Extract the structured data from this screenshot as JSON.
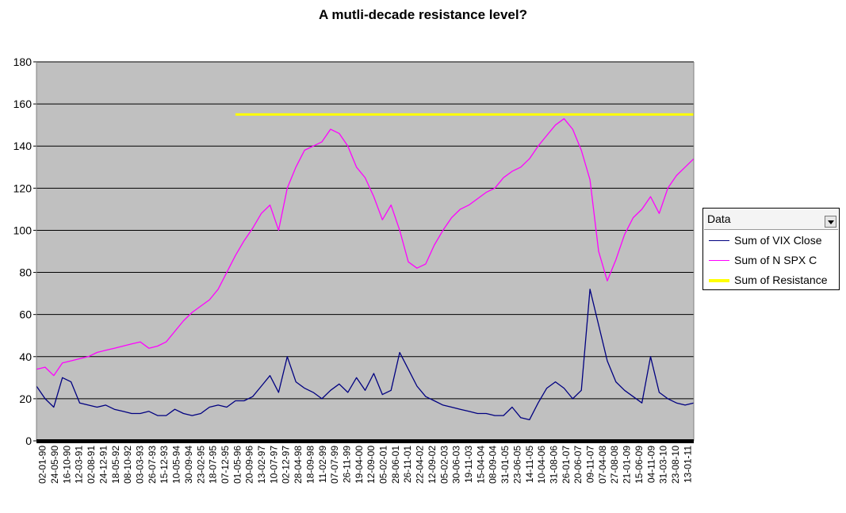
{
  "chart_data": {
    "type": "line",
    "title": "A mutli-decade resistance level?",
    "ylim": [
      0,
      180
    ],
    "yticks": [
      0,
      20,
      40,
      60,
      80,
      100,
      120,
      140,
      160,
      180
    ],
    "grid": true,
    "legend_position": "right",
    "legend_title": "Data",
    "x_tick_labels": [
      "02-01-90",
      "24-05-90",
      "16-10-90",
      "12-03-91",
      "02-08-91",
      "24-12-91",
      "18-05-92",
      "08-10-92",
      "03-03-93",
      "26-07-93",
      "15-12-93",
      "10-05-94",
      "30-09-94",
      "23-02-95",
      "18-07-95",
      "07-12-95",
      "01-05-96",
      "20-09-96",
      "13-02-97",
      "10-07-97",
      "02-12-97",
      "28-04-98",
      "18-09-98",
      "11-02-99",
      "07-07-99",
      "26-11-99",
      "19-04-00",
      "12-09-00",
      "05-02-01",
      "28-06-01",
      "26-11-01",
      "22-04-02",
      "12-09-02",
      "05-02-03",
      "30-06-03",
      "19-11-03",
      "15-04-04",
      "08-09-04",
      "31-01-05",
      "23-06-05",
      "14-11-05",
      "10-04-06",
      "31-08-06",
      "26-01-07",
      "20-06-07",
      "09-11-07",
      "07-04-08",
      "27-08-08",
      "21-01-09",
      "15-06-09",
      "04-11-09",
      "31-03-10",
      "23-08-10",
      "13-01-11"
    ],
    "series": [
      {
        "name": "Sum of VIX Close",
        "color": "#000080",
        "values": [
          [
            0,
            26
          ],
          [
            1,
            20
          ],
          [
            2,
            16
          ],
          [
            3,
            30
          ],
          [
            4,
            28
          ],
          [
            5,
            18
          ],
          [
            6,
            17
          ],
          [
            7,
            16
          ],
          [
            8,
            17
          ],
          [
            9,
            15
          ],
          [
            10,
            14
          ],
          [
            11,
            13
          ],
          [
            12,
            13
          ],
          [
            13,
            14
          ],
          [
            14,
            12
          ],
          [
            15,
            12
          ],
          [
            16,
            15
          ],
          [
            17,
            13
          ],
          [
            18,
            12
          ],
          [
            19,
            13
          ],
          [
            20,
            16
          ],
          [
            21,
            17
          ],
          [
            22,
            16
          ],
          [
            23,
            19
          ],
          [
            24,
            19
          ],
          [
            25,
            21
          ],
          [
            26,
            26
          ],
          [
            27,
            31
          ],
          [
            28,
            23
          ],
          [
            29,
            40
          ],
          [
            30,
            28
          ],
          [
            31,
            25
          ],
          [
            32,
            23
          ],
          [
            33,
            20
          ],
          [
            34,
            24
          ],
          [
            35,
            27
          ],
          [
            36,
            23
          ],
          [
            37,
            30
          ],
          [
            38,
            24
          ],
          [
            39,
            32
          ],
          [
            40,
            22
          ],
          [
            41,
            24
          ],
          [
            42,
            42
          ],
          [
            43,
            34
          ],
          [
            44,
            26
          ],
          [
            45,
            21
          ],
          [
            46,
            19
          ],
          [
            47,
            17
          ],
          [
            48,
            16
          ],
          [
            49,
            15
          ],
          [
            50,
            14
          ],
          [
            51,
            13
          ],
          [
            52,
            13
          ],
          [
            53,
            12
          ],
          [
            54,
            12
          ],
          [
            55,
            16
          ],
          [
            56,
            11
          ],
          [
            57,
            10
          ],
          [
            58,
            18
          ],
          [
            59,
            25
          ],
          [
            60,
            28
          ],
          [
            61,
            25
          ],
          [
            62,
            20
          ],
          [
            63,
            24
          ],
          [
            64,
            72
          ],
          [
            65,
            55
          ],
          [
            66,
            38
          ],
          [
            67,
            28
          ],
          [
            68,
            24
          ],
          [
            69,
            21
          ],
          [
            70,
            18
          ],
          [
            71,
            40
          ],
          [
            72,
            23
          ],
          [
            73,
            20
          ],
          [
            74,
            18
          ],
          [
            75,
            17
          ],
          [
            76,
            18
          ]
        ]
      },
      {
        "name": "Sum of N SPX C",
        "color": "#ff00ff",
        "values": [
          [
            0,
            34
          ],
          [
            1,
            35
          ],
          [
            2,
            31
          ],
          [
            3,
            37
          ],
          [
            4,
            38
          ],
          [
            5,
            39
          ],
          [
            6,
            40
          ],
          [
            7,
            42
          ],
          [
            8,
            43
          ],
          [
            9,
            44
          ],
          [
            10,
            45
          ],
          [
            11,
            46
          ],
          [
            12,
            47
          ],
          [
            13,
            44
          ],
          [
            14,
            45
          ],
          [
            15,
            47
          ],
          [
            16,
            52
          ],
          [
            17,
            57
          ],
          [
            18,
            61
          ],
          [
            19,
            64
          ],
          [
            20,
            67
          ],
          [
            21,
            72
          ],
          [
            22,
            80
          ],
          [
            23,
            88
          ],
          [
            24,
            95
          ],
          [
            25,
            101
          ],
          [
            26,
            108
          ],
          [
            27,
            112
          ],
          [
            28,
            100
          ],
          [
            29,
            120
          ],
          [
            30,
            130
          ],
          [
            31,
            138
          ],
          [
            32,
            140
          ],
          [
            33,
            142
          ],
          [
            34,
            148
          ],
          [
            35,
            146
          ],
          [
            36,
            140
          ],
          [
            37,
            130
          ],
          [
            38,
            125
          ],
          [
            39,
            116
          ],
          [
            40,
            105
          ],
          [
            41,
            112
          ],
          [
            42,
            100
          ],
          [
            43,
            85
          ],
          [
            44,
            82
          ],
          [
            45,
            84
          ],
          [
            46,
            93
          ],
          [
            47,
            100
          ],
          [
            48,
            106
          ],
          [
            49,
            110
          ],
          [
            50,
            112
          ],
          [
            51,
            115
          ],
          [
            52,
            118
          ],
          [
            53,
            120
          ],
          [
            54,
            125
          ],
          [
            55,
            128
          ],
          [
            56,
            130
          ],
          [
            57,
            134
          ],
          [
            58,
            140
          ],
          [
            59,
            145
          ],
          [
            60,
            150
          ],
          [
            61,
            153
          ],
          [
            62,
            148
          ],
          [
            63,
            138
          ],
          [
            64,
            124
          ],
          [
            65,
            90
          ],
          [
            66,
            76
          ],
          [
            67,
            86
          ],
          [
            68,
            98
          ],
          [
            69,
            106
          ],
          [
            70,
            110
          ],
          [
            71,
            116
          ],
          [
            72,
            108
          ],
          [
            73,
            120
          ],
          [
            74,
            126
          ],
          [
            75,
            130
          ],
          [
            76,
            134
          ]
        ]
      },
      {
        "name": "Sum of Resistance",
        "color": "#ffff00",
        "values": [
          [
            23,
            155
          ],
          [
            76,
            155
          ]
        ]
      }
    ]
  }
}
